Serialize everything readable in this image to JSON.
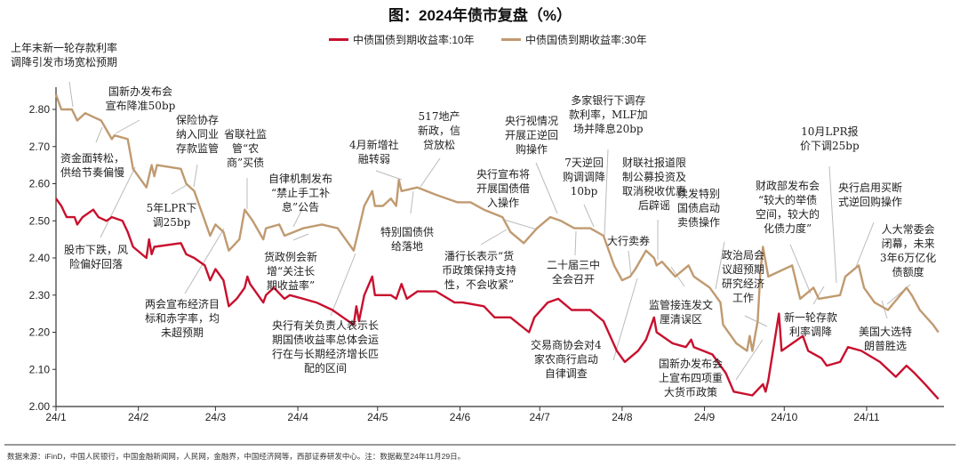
{
  "title": "图：2024年债市复盘（%）",
  "footer": "数据来源：iFinD，中国人民银行，中国金融新闻网，人民网，金融界，中国经济网等，西部证券研发中心。注：数据截至24年11月29日。",
  "colors": {
    "series_10y": "#c8102e",
    "series_30y": "#c09a70",
    "axis": "#333333",
    "leader": "#b5b5b5"
  },
  "chart_data": {
    "type": "line",
    "title": "图：2024年债市复盘（%）",
    "xlabel": "",
    "ylabel": "",
    "ylim": [
      2.0,
      2.85
    ],
    "yticks": [
      "2.00",
      "2.10",
      "2.20",
      "2.30",
      "2.40",
      "2.50",
      "2.60",
      "2.70",
      "2.80"
    ],
    "xticks": [
      "24/1",
      "24/2",
      "24/3",
      "24/4",
      "24/5",
      "24/6",
      "24/7",
      "24/8",
      "24/9",
      "24/10",
      "24/11"
    ],
    "grid": false,
    "legend_placement": "top",
    "series": [
      {
        "name": "中债国债到期收益率:10年",
        "color": "#c8102e",
        "points": [
          [
            "2024-01-01",
            2.56
          ],
          [
            "2024-01-03",
            2.54
          ],
          [
            "2024-01-05",
            2.51
          ],
          [
            "2024-01-08",
            2.51
          ],
          [
            "2024-01-09",
            2.49
          ],
          [
            "2024-01-11",
            2.51
          ],
          [
            "2024-01-15",
            2.53
          ],
          [
            "2024-01-17",
            2.51
          ],
          [
            "2024-01-20",
            2.5
          ],
          [
            "2024-01-22",
            2.51
          ],
          [
            "2024-01-26",
            2.5
          ],
          [
            "2024-01-28",
            2.47
          ],
          [
            "2024-01-30",
            2.43
          ],
          [
            "2024-02-04",
            2.4
          ],
          [
            "2024-02-05",
            2.45
          ],
          [
            "2024-02-06",
            2.41
          ],
          [
            "2024-02-07",
            2.43
          ],
          [
            "2024-02-17",
            2.44
          ],
          [
            "2024-02-19",
            2.41
          ],
          [
            "2024-02-22",
            2.4
          ],
          [
            "2024-02-26",
            2.38
          ],
          [
            "2024-02-28",
            2.34
          ],
          [
            "2024-03-01",
            2.37
          ],
          [
            "2024-03-04",
            2.34
          ],
          [
            "2024-03-06",
            2.27
          ],
          [
            "2024-03-09",
            2.29
          ],
          [
            "2024-03-12",
            2.32
          ],
          [
            "2024-03-13",
            2.35
          ],
          [
            "2024-03-14",
            2.33
          ],
          [
            "2024-03-19",
            2.28
          ],
          [
            "2024-03-20",
            2.3
          ],
          [
            "2024-03-23",
            2.32
          ],
          [
            "2024-03-27",
            2.29
          ],
          [
            "2024-03-29",
            2.3
          ],
          [
            "2024-04-03",
            2.29
          ],
          [
            "2024-04-08",
            2.28
          ],
          [
            "2024-04-14",
            2.26
          ],
          [
            "2024-04-18",
            2.24
          ],
          [
            "2024-04-22",
            2.22
          ],
          [
            "2024-04-23",
            2.27
          ],
          [
            "2024-04-24",
            2.23
          ],
          [
            "2024-04-26",
            2.3
          ],
          [
            "2024-04-29",
            2.35
          ],
          [
            "2024-04-30",
            2.3
          ],
          [
            "2024-05-06",
            2.3
          ],
          [
            "2024-05-08",
            2.29
          ],
          [
            "2024-05-10",
            2.33
          ],
          [
            "2024-05-12",
            2.29
          ],
          [
            "2024-05-16",
            2.31
          ],
          [
            "2024-05-23",
            2.31
          ],
          [
            "2024-05-30",
            2.28
          ],
          [
            "2024-06-02",
            2.28
          ],
          [
            "2024-06-10",
            2.27
          ],
          [
            "2024-06-14",
            2.24
          ],
          [
            "2024-06-20",
            2.24
          ],
          [
            "2024-06-27",
            2.2
          ],
          [
            "2024-06-29",
            2.24
          ],
          [
            "2024-07-04",
            2.28
          ],
          [
            "2024-07-08",
            2.29
          ],
          [
            "2024-07-13",
            2.26
          ],
          [
            "2024-07-20",
            2.26
          ],
          [
            "2024-07-25",
            2.23
          ],
          [
            "2024-07-30",
            2.15
          ],
          [
            "2024-08-02",
            2.12
          ],
          [
            "2024-08-07",
            2.15
          ],
          [
            "2024-08-10",
            2.18
          ],
          [
            "2024-08-13",
            2.24
          ],
          [
            "2024-08-14",
            2.2
          ],
          [
            "2024-08-20",
            2.17
          ],
          [
            "2024-08-25",
            2.16
          ],
          [
            "2024-08-27",
            2.18
          ],
          [
            "2024-08-28",
            2.16
          ],
          [
            "2024-09-04",
            2.14
          ],
          [
            "2024-09-09",
            2.09
          ],
          [
            "2024-09-12",
            2.04
          ],
          [
            "2024-09-19",
            2.03
          ],
          [
            "2024-09-23",
            2.06
          ],
          [
            "2024-09-24",
            2.04
          ],
          [
            "2024-09-25",
            2.07
          ],
          [
            "2024-09-29",
            2.25
          ],
          [
            "2024-09-30",
            2.15
          ],
          [
            "2024-10-08",
            2.19
          ],
          [
            "2024-10-10",
            2.15
          ],
          [
            "2024-10-15",
            2.13
          ],
          [
            "2024-10-17",
            2.11
          ],
          [
            "2024-10-22",
            2.12
          ],
          [
            "2024-10-25",
            2.16
          ],
          [
            "2024-10-30",
            2.15
          ],
          [
            "2024-11-06",
            2.12
          ],
          [
            "2024-11-12",
            2.08
          ],
          [
            "2024-11-16",
            2.11
          ],
          [
            "2024-11-19",
            2.09
          ],
          [
            "2024-11-23",
            2.06
          ],
          [
            "2024-11-28",
            2.02
          ]
        ]
      },
      {
        "name": "中债国债到期收益率:30年",
        "color": "#c09a70",
        "points": [
          [
            "2024-01-01",
            2.84
          ],
          [
            "2024-01-03",
            2.8
          ],
          [
            "2024-01-07",
            2.8
          ],
          [
            "2024-01-09",
            2.77
          ],
          [
            "2024-01-12",
            2.79
          ],
          [
            "2024-01-15",
            2.78
          ],
          [
            "2024-01-18",
            2.77
          ],
          [
            "2024-01-22",
            2.72
          ],
          [
            "2024-01-23",
            2.73
          ],
          [
            "2024-01-28",
            2.72
          ],
          [
            "2024-01-30",
            2.64
          ],
          [
            "2024-02-04",
            2.59
          ],
          [
            "2024-02-06",
            2.65
          ],
          [
            "2024-02-07",
            2.62
          ],
          [
            "2024-02-08",
            2.65
          ],
          [
            "2024-02-17",
            2.64
          ],
          [
            "2024-02-19",
            2.6
          ],
          [
            "2024-02-22",
            2.58
          ],
          [
            "2024-02-28",
            2.46
          ],
          [
            "2024-03-01",
            2.49
          ],
          [
            "2024-03-04",
            2.47
          ],
          [
            "2024-03-06",
            2.42
          ],
          [
            "2024-03-10",
            2.45
          ],
          [
            "2024-03-12",
            2.53
          ],
          [
            "2024-03-15",
            2.5
          ],
          [
            "2024-03-19",
            2.45
          ],
          [
            "2024-03-20",
            2.48
          ],
          [
            "2024-03-25",
            2.49
          ],
          [
            "2024-03-27",
            2.46
          ],
          [
            "2024-04-03",
            2.48
          ],
          [
            "2024-04-10",
            2.49
          ],
          [
            "2024-04-16",
            2.48
          ],
          [
            "2024-04-22",
            2.42
          ],
          [
            "2024-04-24",
            2.48
          ],
          [
            "2024-04-26",
            2.54
          ],
          [
            "2024-04-29",
            2.58
          ],
          [
            "2024-04-30",
            2.54
          ],
          [
            "2024-05-03",
            2.54
          ],
          [
            "2024-05-06",
            2.56
          ],
          [
            "2024-05-08",
            2.54
          ],
          [
            "2024-05-09",
            2.61
          ],
          [
            "2024-05-10",
            2.58
          ],
          [
            "2024-05-16",
            2.59
          ],
          [
            "2024-05-23",
            2.57
          ],
          [
            "2024-05-31",
            2.55
          ],
          [
            "2024-06-05",
            2.55
          ],
          [
            "2024-06-10",
            2.53
          ],
          [
            "2024-06-17",
            2.51
          ],
          [
            "2024-06-20",
            2.47
          ],
          [
            "2024-06-25",
            2.44
          ],
          [
            "2024-06-30",
            2.48
          ],
          [
            "2024-07-05",
            2.51
          ],
          [
            "2024-07-09",
            2.5
          ],
          [
            "2024-07-14",
            2.48
          ],
          [
            "2024-07-20",
            2.48
          ],
          [
            "2024-07-25",
            2.46
          ],
          [
            "2024-07-29",
            2.38
          ],
          [
            "2024-08-01",
            2.34
          ],
          [
            "2024-08-04",
            2.35
          ],
          [
            "2024-08-06",
            2.37
          ],
          [
            "2024-08-10",
            2.42
          ],
          [
            "2024-08-13",
            2.4
          ],
          [
            "2024-08-14",
            2.38
          ],
          [
            "2024-08-16",
            2.39
          ],
          [
            "2024-08-21",
            2.35
          ],
          [
            "2024-08-26",
            2.38
          ],
          [
            "2024-08-28",
            2.35
          ],
          [
            "2024-09-03",
            2.32
          ],
          [
            "2024-09-07",
            2.28
          ],
          [
            "2024-09-08",
            2.22
          ],
          [
            "2024-09-13",
            2.17
          ],
          [
            "2024-09-17",
            2.15
          ],
          [
            "2024-09-18",
            2.19
          ],
          [
            "2024-09-19",
            2.15
          ],
          [
            "2024-09-21",
            2.23
          ],
          [
            "2024-09-22",
            2.36
          ],
          [
            "2024-09-23",
            2.43
          ],
          [
            "2024-09-25",
            2.35
          ],
          [
            "2024-10-04",
            2.38
          ],
          [
            "2024-10-07",
            2.29
          ],
          [
            "2024-10-12",
            2.32
          ],
          [
            "2024-10-14",
            2.29
          ],
          [
            "2024-10-22",
            2.3
          ],
          [
            "2024-10-24",
            2.35
          ],
          [
            "2024-10-29",
            2.38
          ],
          [
            "2024-10-31",
            2.32
          ],
          [
            "2024-11-04",
            2.28
          ],
          [
            "2024-11-09",
            2.26
          ],
          [
            "2024-11-16",
            2.32
          ],
          [
            "2024-11-18",
            2.3
          ],
          [
            "2024-11-21",
            2.26
          ],
          [
            "2024-11-26",
            2.22
          ],
          [
            "2024-11-28",
            2.2
          ]
        ]
      }
    ],
    "annotations": [
      {
        "lines": [
          "上年末新一轮存款利率",
          "调降引发市场宽松预期"
        ]
      },
      {
        "lines": [
          "国新办发布会",
          "宣布降准50bp"
        ]
      },
      {
        "lines": [
          "资金面转松，",
          "供给节奏偏慢"
        ]
      },
      {
        "lines": [
          "保险协存",
          "纳入同业",
          "存款监管"
        ]
      },
      {
        "lines": [
          "省联社监",
          "管“农",
          "商”买债"
        ]
      },
      {
        "lines": [
          "5年LPR下",
          "调25bp"
        ]
      },
      {
        "lines": [
          "自律机制发布",
          "“禁止手工补",
          "息”公告"
        ]
      },
      {
        "lines": [
          "股市下跌，风",
          "险偏好回落"
        ]
      },
      {
        "lines": [
          "两会宣布经济目",
          "标和赤字率，均",
          "未超预期"
        ]
      },
      {
        "lines": [
          "货政例会新",
          "增“关注长",
          "期收益率”"
        ]
      },
      {
        "lines": [
          "央行有关负责人表示长",
          "期国债收益率总体会运",
          "行在与长期经济增长匹",
          "配的区间"
        ]
      },
      {
        "lines": [
          "4月新增社",
          "融转弱"
        ]
      },
      {
        "lines": [
          "517地产",
          "新政，信",
          "贷放松"
        ]
      },
      {
        "lines": [
          "特别国债供",
          "给落地"
        ]
      },
      {
        "lines": [
          "央行视情况",
          "开展正逆回",
          "购操作"
        ]
      },
      {
        "lines": [
          "央行宣布将",
          "开展国债借",
          "入操作"
        ]
      },
      {
        "lines": [
          "潘行长表示“货",
          "币政策保持支持",
          "性，不会收紧”"
        ]
      },
      {
        "lines": [
          "7天逆回",
          "购调调降",
          "10bp"
        ]
      },
      {
        "lines": [
          "多家银行下调存",
          "款利率，MLF加",
          "场并降息20bp"
        ]
      },
      {
        "lines": [
          "二十届三中",
          "全会召开"
        ]
      },
      {
        "lines": [
          "大行卖券"
        ]
      },
      {
        "lines": [
          "财联社报道限",
          "制公募投资及",
          "取消税收优惠",
          "后辟谣"
        ]
      },
      {
        "lines": [
          "交易商协会对4",
          "家农商行启动",
          "自律调查"
        ]
      },
      {
        "lines": [
          "监管接连发文",
          "厘清误区"
        ]
      },
      {
        "lines": [
          "续发特别",
          "国债启动",
          "卖债操作"
        ]
      },
      {
        "lines": [
          "政治局会",
          "议超预期",
          "研究经济",
          "工作"
        ]
      },
      {
        "lines": [
          "国新办发布会",
          "上宣布四项重",
          "大货币政策"
        ]
      },
      {
        "lines": [
          "财政部发布会",
          "“较大的举债",
          "空间，较大的",
          "化债力度”"
        ]
      },
      {
        "lines": [
          "新一轮存款",
          "利率调降"
        ]
      },
      {
        "lines": [
          "10月LPR报",
          "价下调25bp"
        ]
      },
      {
        "lines": [
          "央行启用买断",
          "式逆回购操作"
        ]
      },
      {
        "lines": [
          "人大常委会",
          "闭幕，未来",
          "3年6万亿化",
          "债额度"
        ]
      },
      {
        "lines": [
          "美国大选特",
          "朗普胜选"
        ]
      }
    ]
  }
}
